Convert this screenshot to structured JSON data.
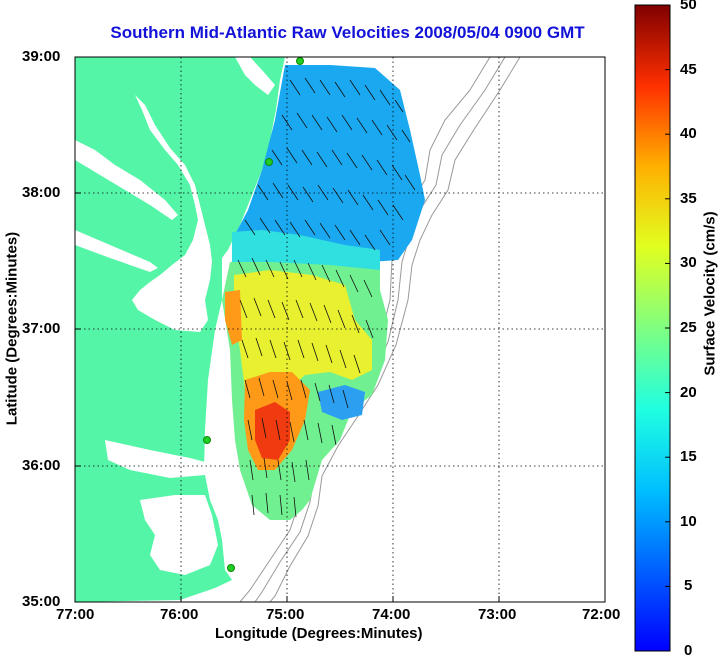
{
  "title": "Southern Mid-Atlantic Raw Velocities 2008/05/04 0900 GMT",
  "axes": {
    "xlabel": "Longitude (Degrees:Minutes)",
    "ylabel": "Latitude (Degrees:Minutes)",
    "x_ticks": [
      "77:00",
      "76:00",
      "75:00",
      "74:00",
      "73:00",
      "72:00"
    ],
    "y_ticks": [
      "39:00",
      "38:00",
      "37:00",
      "36:00",
      "35:00"
    ]
  },
  "colorbar": {
    "label": "Surface Velocity (cm/s)",
    "ticks": [
      "50",
      "45",
      "40",
      "35",
      "30",
      "25",
      "20",
      "15",
      "10",
      "5",
      "0"
    ],
    "range": [
      0,
      50
    ]
  },
  "colors": {
    "title": "#1212d8",
    "land": "#55f5a8",
    "water": "#ffffff",
    "bathymetry": "#999999",
    "station": "#22cc22"
  }
}
